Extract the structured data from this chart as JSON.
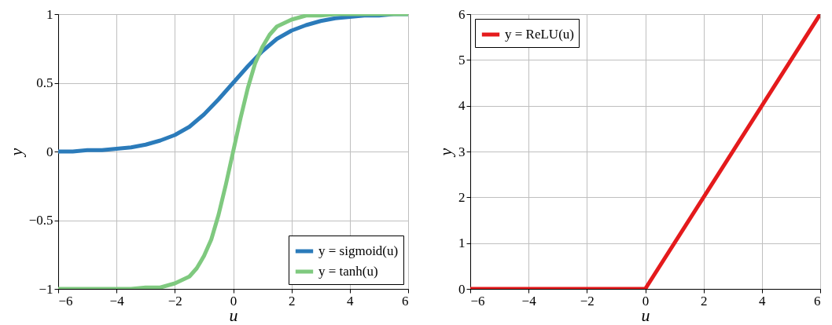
{
  "chart_data": [
    {
      "type": "line",
      "xlabel": "u",
      "ylabel": "y",
      "xlim": [
        -6,
        6
      ],
      "ylim": [
        -1,
        1
      ],
      "xticks": [
        {
          "value": -6,
          "label": "−6"
        },
        {
          "value": -4,
          "label": "−4"
        },
        {
          "value": -2,
          "label": "−2"
        },
        0,
        2,
        4,
        6
      ],
      "yticks": [
        {
          "value": -1,
          "label": "−1"
        },
        {
          "value": -0.5,
          "label": "−0.5"
        },
        0,
        0.5,
        1
      ],
      "grid": true,
      "legend": "bottom right",
      "line_style": "solid",
      "marker": "none",
      "series": [
        {
          "name": "y = sigmoid(u)",
          "color": "#2b7bba",
          "x": [
            -6,
            -5.5,
            -5,
            -4.5,
            -4,
            -3.5,
            -3,
            -2.5,
            -2,
            -1.5,
            -1,
            -0.5,
            0,
            0.5,
            1,
            1.5,
            2,
            2.5,
            3,
            3.5,
            4,
            4.5,
            5,
            5.5,
            6
          ],
          "values": [
            0.0,
            0.0,
            0.01,
            0.01,
            0.02,
            0.03,
            0.05,
            0.08,
            0.12,
            0.18,
            0.27,
            0.38,
            0.5,
            0.62,
            0.73,
            0.82,
            0.88,
            0.92,
            0.95,
            0.97,
            0.98,
            0.99,
            0.99,
            1.0,
            1.0
          ]
        },
        {
          "name": "y = tanh(u)",
          "color": "#7fc97f",
          "x": [
            -6,
            -5,
            -4,
            -3.5,
            -3,
            -2.5,
            -2,
            -1.5,
            -1.25,
            -1,
            -0.75,
            -0.5,
            -0.25,
            0,
            0.25,
            0.5,
            0.75,
            1,
            1.25,
            1.5,
            2,
            2.5,
            3,
            3.5,
            4,
            5,
            6
          ],
          "values": [
            -1.0,
            -1.0,
            -1.0,
            -1.0,
            -0.99,
            -0.99,
            -0.96,
            -0.91,
            -0.85,
            -0.76,
            -0.64,
            -0.46,
            -0.24,
            0.0,
            0.24,
            0.46,
            0.64,
            0.76,
            0.85,
            0.91,
            0.96,
            0.99,
            0.99,
            1.0,
            1.0,
            1.0,
            1.0
          ]
        }
      ]
    },
    {
      "type": "line",
      "xlabel": "u",
      "ylabel": "y",
      "xlim": [
        -6,
        6
      ],
      "ylim": [
        0,
        6
      ],
      "xticks": [
        {
          "value": -6,
          "label": "−6"
        },
        {
          "value": -4,
          "label": "−4"
        },
        {
          "value": -2,
          "label": "−2"
        },
        0,
        2,
        4,
        6
      ],
      "yticks": [
        0,
        1,
        2,
        3,
        4,
        5,
        6
      ],
      "grid": true,
      "legend": "top left",
      "line_style": "solid",
      "marker": "none",
      "series": [
        {
          "name": "y = ReLU(u)",
          "color": "#e41a1c",
          "x": [
            -6,
            0,
            6
          ],
          "values": [
            0,
            0,
            6
          ]
        }
      ]
    }
  ]
}
